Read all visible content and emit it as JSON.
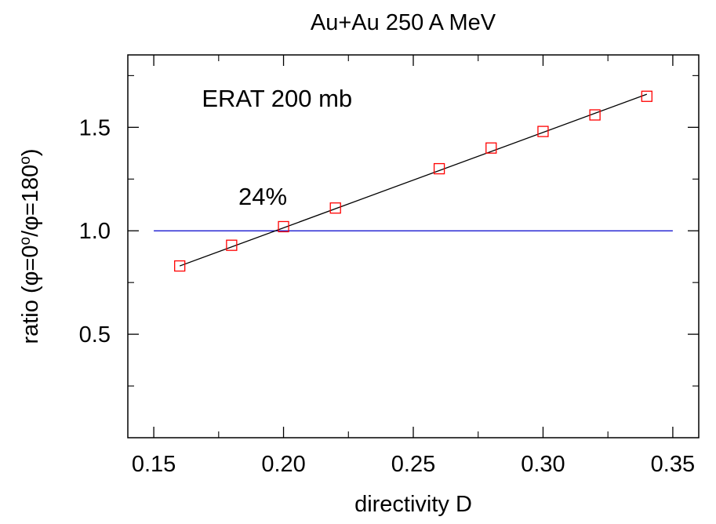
{
  "chart_data": {
    "type": "scatter",
    "title": "Au+Au 250 A MeV",
    "xlabel": "directivity D",
    "ylabel": {
      "parts": [
        "ratio (",
        "φ",
        "=0",
        "o",
        "/",
        "φ",
        "=180",
        "o",
        ")"
      ]
    },
    "xlim": [
      0.14,
      0.36
    ],
    "ylim": [
      0.0,
      1.85
    ],
    "x_ticks": [
      0.15,
      0.2,
      0.25,
      0.3,
      0.35
    ],
    "x_tick_labels": [
      "0.15",
      "0.20",
      "0.25",
      "0.30",
      "0.35"
    ],
    "x_minor_ticks": [
      0.175,
      0.225,
      0.275,
      0.325
    ],
    "y_ticks": [
      0.5,
      1.0,
      1.5
    ],
    "y_tick_labels": [
      "0.5",
      "1.0",
      "1.5"
    ],
    "y_minor_ticks": [
      0.25,
      0.75,
      1.25,
      1.75
    ],
    "grid": false,
    "series": [
      {
        "marker": "open-square",
        "color": "#ff0000",
        "x": [
          0.16,
          0.18,
          0.2,
          0.22,
          0.26,
          0.28,
          0.3,
          0.32,
          0.34
        ],
        "y": [
          0.83,
          0.93,
          1.02,
          1.11,
          1.3,
          1.4,
          1.48,
          1.56,
          1.65
        ]
      }
    ],
    "fit_line": {
      "color": "#000000",
      "x": [
        0.16,
        0.34
      ],
      "y": [
        0.83,
        1.66
      ]
    },
    "reference_line": {
      "color": "#0000cc",
      "y": 1.0,
      "x": [
        0.15,
        0.35
      ]
    },
    "annotations": [
      {
        "text": "ERAT 200 mb",
        "x": 0.1975,
        "y": 1.6
      },
      {
        "text": "24%",
        "x": 0.192,
        "y": 1.125
      }
    ]
  }
}
